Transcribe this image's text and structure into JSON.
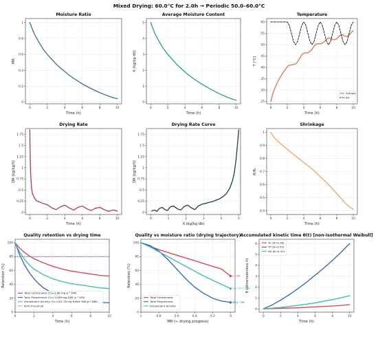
{
  "suptitle": "Mixed Drying: 60.0°C for 2.0h → Periodic 50.0–60.0°C",
  "colors": {
    "mr": "#3a6d9a",
    "x": "#2a9d8f",
    "sample": "#e76f51",
    "air": "#111111",
    "rate": "#b5357a",
    "curve": "#1d3e4d",
    "shrink": "#f4a261",
    "car": "#e63946",
    "tp": "#2a63b8",
    "aa": "#2ec4a6",
    "threshold": "#8a6fc9"
  },
  "chart_data": [
    {
      "id": "moisture-ratio",
      "type": "line",
      "title": "Moisture Ratio",
      "xlabel": "Time (h)",
      "ylabel": "MR",
      "xlim": [
        -0.5,
        10.5
      ],
      "ylim": [
        -0.02,
        1.05
      ],
      "xticks": [
        0,
        2,
        4,
        6,
        8,
        10
      ],
      "yticks": [
        0.0,
        0.2,
        0.4,
        0.6,
        0.8,
        1.0
      ],
      "grid": true,
      "series": [
        {
          "color": "mr",
          "x": [
            0,
            0.5,
            1,
            1.5,
            2,
            2.5,
            3,
            3.5,
            4,
            4.5,
            5,
            5.5,
            6,
            6.5,
            7,
            7.5,
            8,
            8.5,
            9,
            9.5,
            10
          ],
          "y": [
            1.0,
            0.86,
            0.76,
            0.67,
            0.6,
            0.54,
            0.48,
            0.43,
            0.385,
            0.34,
            0.3,
            0.265,
            0.23,
            0.2,
            0.172,
            0.145,
            0.12,
            0.098,
            0.076,
            0.058,
            0.045
          ]
        }
      ]
    },
    {
      "id": "average-moisture",
      "type": "line",
      "title": "Average Moisture Content",
      "xlabel": "Time (h)",
      "ylabel": "X (kg/kg db)",
      "xlim": [
        -0.5,
        10.5
      ],
      "ylim": [
        -0.1,
        5.25
      ],
      "xticks": [
        0,
        2,
        4,
        6,
        8,
        10
      ],
      "yticks": [
        0,
        1,
        2,
        3,
        4,
        5
      ],
      "grid": true,
      "series": [
        {
          "color": "x",
          "x": [
            0,
            0.5,
            1,
            1.5,
            2,
            2.5,
            3,
            3.5,
            4,
            4.5,
            5,
            5.5,
            6,
            6.5,
            7,
            7.5,
            8,
            8.5,
            9,
            9.5,
            10
          ],
          "y": [
            5.0,
            4.3,
            3.8,
            3.35,
            3.0,
            2.7,
            2.4,
            2.15,
            1.9,
            1.68,
            1.48,
            1.3,
            1.13,
            0.97,
            0.82,
            0.68,
            0.54,
            0.42,
            0.3,
            0.2,
            0.12
          ]
        }
      ]
    },
    {
      "id": "temperature",
      "type": "line",
      "title": "Temperature",
      "xlabel": "Time (h)",
      "ylabel": "T (°C)",
      "xlim": [
        -0.5,
        10.5
      ],
      "ylim": [
        24,
        61.5
      ],
      "xticks": [
        0,
        2,
        4,
        6,
        8,
        10
      ],
      "yticks": [
        25,
        30,
        35,
        40,
        45,
        50,
        55,
        60
      ],
      "grid": true,
      "legend": "bottom-right",
      "series": [
        {
          "name": "Sample",
          "color": "sample",
          "x": [
            0,
            0.25,
            0.5,
            0.75,
            1,
            1.25,
            1.5,
            1.75,
            2,
            2.25,
            2.5,
            2.75,
            3,
            3.25,
            3.5,
            3.75,
            4,
            4.25,
            4.5,
            4.75,
            5,
            5.25,
            5.5,
            5.75,
            6,
            6.25,
            6.5,
            6.75,
            7,
            7.25,
            7.5,
            7.75,
            8,
            8.25,
            8.5,
            8.75,
            9,
            9.25,
            9.5,
            9.75,
            10
          ],
          "y": [
            25,
            28.5,
            31,
            33,
            34.8,
            36.3,
            37.8,
            39.1,
            40.3,
            41,
            41.1,
            41.3,
            41.5,
            42.5,
            44,
            45.5,
            46.3,
            46.4,
            46.5,
            47,
            48,
            49.3,
            50.3,
            50.4,
            50.4,
            50.7,
            51.4,
            52.3,
            53,
            52.8,
            52.3,
            52.2,
            52.6,
            53.6,
            54.4,
            54.3,
            53.7,
            53.6,
            54.3,
            55.4,
            56.2
          ]
        },
        {
          "name": "Air",
          "color": "air",
          "dashed": true,
          "x": [
            0,
            0.5,
            1,
            1.5,
            2,
            2.25,
            2.5,
            2.75,
            3,
            3.25,
            3.5,
            3.75,
            4,
            4.25,
            4.5,
            4.75,
            5,
            5.25,
            5.5,
            5.75,
            6,
            6.25,
            6.5,
            6.75,
            7,
            7.25,
            7.5,
            7.75,
            8,
            8.25,
            8.5,
            8.75,
            9,
            9.25,
            9.5,
            9.75,
            10
          ],
          "y": [
            60,
            60,
            60,
            60,
            60,
            58.5,
            55,
            51.5,
            50,
            51.5,
            55,
            58.5,
            60,
            58.5,
            55,
            51.5,
            50,
            51.5,
            55,
            58.5,
            60,
            58.5,
            55,
            51.5,
            50,
            51.5,
            55,
            58.5,
            60,
            58.5,
            55,
            51.5,
            50,
            51.5,
            55,
            58.5,
            60
          ]
        }
      ]
    },
    {
      "id": "drying-rate",
      "type": "line",
      "title": "Drying Rate",
      "xlabel": "Time (h)",
      "ylabel": "DR (kg/kg/h)",
      "xlim": [
        -0.5,
        10.5
      ],
      "ylim": [
        -0.05,
        1.88
      ],
      "xticks": [
        0,
        2,
        4,
        6,
        8,
        10
      ],
      "yticks": [
        0.0,
        0.25,
        0.5,
        0.75,
        1.0,
        1.25,
        1.5,
        1.75
      ],
      "grid": true,
      "series": [
        {
          "color": "rate",
          "x": [
            0,
            0.05,
            0.1,
            0.2,
            0.3,
            0.5,
            0.75,
            1,
            1.5,
            2,
            2.5,
            3,
            3.5,
            4,
            4.5,
            5,
            5.5,
            6,
            6.5,
            7,
            7.5,
            8,
            8.5,
            9,
            9.5,
            10
          ],
          "y": [
            1.85,
            1.2,
            0.85,
            0.55,
            0.42,
            0.33,
            0.26,
            0.24,
            0.2,
            0.17,
            0.1,
            0.06,
            0.12,
            0.16,
            0.1,
            0.05,
            0.11,
            0.14,
            0.08,
            0.04,
            0.09,
            0.11,
            0.06,
            0.02,
            0.05,
            0.03
          ]
        }
      ]
    },
    {
      "id": "drying-rate-curve",
      "type": "line",
      "title": "Drying Rate Curve",
      "xlabel": "X (kg/kg db)",
      "ylabel": "DR (kg/kg/h)",
      "xlim": [
        -0.25,
        5.1
      ],
      "ylim": [
        -0.05,
        1.88
      ],
      "xticks": [
        0,
        1,
        2,
        3,
        4,
        5
      ],
      "yticks": [
        0.0,
        0.25,
        0.5,
        0.75,
        1.0,
        1.25,
        1.5,
        1.75
      ],
      "grid": true,
      "series": [
        {
          "color": "curve",
          "x": [
            0.05,
            0.2,
            0.35,
            0.5,
            0.65,
            0.8,
            0.95,
            1.1,
            1.3,
            1.5,
            1.7,
            1.9,
            2.1,
            2.3,
            2.5,
            2.7,
            2.9,
            3.1,
            3.3,
            3.5,
            3.7,
            3.9,
            4.1,
            4.3,
            4.5,
            4.65,
            4.75,
            4.85,
            4.92,
            5.0
          ],
          "y": [
            0.03,
            0.05,
            0.02,
            0.09,
            0.11,
            0.06,
            0.04,
            0.12,
            0.14,
            0.08,
            0.05,
            0.13,
            0.16,
            0.1,
            0.06,
            0.14,
            0.18,
            0.2,
            0.22,
            0.24,
            0.27,
            0.3,
            0.35,
            0.42,
            0.55,
            0.72,
            0.9,
            1.2,
            1.5,
            1.85
          ]
        }
      ]
    },
    {
      "id": "shrinkage",
      "type": "line",
      "title": "Shrinkage",
      "xlabel": "Time (h)",
      "ylabel": "R/R₀",
      "xlim": [
        -0.5,
        10.5
      ],
      "ylim": [
        0.37,
        1.03
      ],
      "xticks": [
        0,
        2,
        4,
        6,
        8,
        10
      ],
      "yticks": [
        0.4,
        0.5,
        0.6,
        0.7,
        0.8,
        0.9,
        1.0
      ],
      "grid": true,
      "series": [
        {
          "color": "shrink",
          "x": [
            0,
            0.5,
            1,
            1.5,
            2,
            2.5,
            3,
            3.5,
            4,
            4.5,
            5,
            5.5,
            6,
            6.5,
            7,
            7.5,
            8,
            8.5,
            9,
            9.5,
            10
          ],
          "y": [
            1.0,
            0.955,
            0.925,
            0.897,
            0.87,
            0.845,
            0.82,
            0.795,
            0.77,
            0.745,
            0.72,
            0.69,
            0.66,
            0.63,
            0.6,
            0.565,
            0.53,
            0.495,
            0.46,
            0.43,
            0.41
          ]
        }
      ]
    },
    {
      "id": "quality-retention",
      "type": "line",
      "title": "Quality retention vs drying time",
      "xlabel": "Time (h)",
      "ylabel": "Retention (%)",
      "xlim": [
        0,
        10
      ],
      "ylim": [
        0,
        105
      ],
      "xticks": [
        0,
        2,
        4,
        6,
        8,
        10
      ],
      "yticks": [
        0,
        20,
        40,
        60,
        80,
        100
      ],
      "grid": true,
      "legend": "bottom-left",
      "series": [
        {
          "name": "Total Carotenoids (C₀=1.66 mg g⁻¹ DM)",
          "color": "car",
          "x": [
            0,
            0.5,
            1,
            1.5,
            2,
            3,
            4,
            5,
            6,
            7,
            8,
            9,
            10
          ],
          "y": [
            100,
            92,
            86,
            81,
            77,
            71,
            66,
            62,
            59,
            57,
            55,
            53,
            52
          ]
        },
        {
          "name": "Total Polyphenols (C₀=14.64 mg GAE g⁻¹ DM)",
          "color": "tp",
          "x": [
            0,
            0.5,
            1,
            1.5,
            2,
            2.5,
            3,
            3.5,
            4,
            4.5,
            5,
            6,
            7,
            8,
            9,
            10
          ],
          "y": [
            100,
            82,
            68,
            57,
            48,
            41,
            35,
            31,
            27,
            24,
            21,
            18,
            15.5,
            14.5,
            14,
            13.5
          ]
        },
        {
          "name": "Antioxidant Activity (C₀=201.18 mg trolox 100 g⁻¹ DM)",
          "color": "aa",
          "x": [
            0,
            0.5,
            1,
            1.5,
            2,
            3,
            4,
            5,
            6,
            7,
            8,
            9,
            10
          ],
          "y": [
            100,
            86,
            76,
            68,
            62,
            54,
            48,
            44,
            41,
            39,
            37,
            35,
            34
          ]
        },
        {
          "name": "80% threshold",
          "color": "threshold",
          "dashed": true,
          "x": [
            0,
            10
          ],
          "y": [
            80,
            80
          ]
        }
      ]
    },
    {
      "id": "quality-vs-mr",
      "type": "line",
      "title": "Quality vs moisture ratio (drying trajectory)",
      "xlabel": "MR  (← drying progress)",
      "ylabel": "Retention (%)",
      "xlim": [
        1.0,
        -0.05
      ],
      "ylim": [
        0,
        105
      ],
      "xticks": [
        1.0,
        0.8,
        0.6,
        0.4,
        0.2,
        0.0
      ],
      "yticks": [
        0,
        20,
        40,
        60,
        80,
        100
      ],
      "grid": true,
      "legend": "bottom-left",
      "annotations": [
        {
          "text": "g⁻¹ DM",
          "color": "car",
          "x": 0.0,
          "y": 52
        },
        {
          "text": "olox 100 g⁻¹ DM",
          "color": "aa",
          "x": 0.0,
          "y": 34
        },
        {
          "text": "DM g⁻¹ DM",
          "color": "tp",
          "x": 0.0,
          "y": 14
        }
      ],
      "series": [
        {
          "name": "Total Carotenoids",
          "color": "car",
          "x": [
            1.0,
            0.9,
            0.8,
            0.7,
            0.6,
            0.5,
            0.4,
            0.3,
            0.2,
            0.1,
            0.05,
            0.0
          ],
          "y": [
            100,
            95,
            90,
            86,
            82,
            78,
            74,
            70,
            66,
            62,
            57,
            52
          ]
        },
        {
          "name": "Total Polyphenols",
          "color": "tp",
          "x": [
            1.0,
            0.9,
            0.8,
            0.7,
            0.6,
            0.5,
            0.4,
            0.3,
            0.2,
            0.1,
            0.05,
            0.0
          ],
          "y": [
            100,
            96,
            88,
            76,
            62,
            48,
            36,
            27,
            20,
            16,
            15,
            14
          ]
        },
        {
          "name": "Antioxidant Activity",
          "color": "aa",
          "x": [
            1.0,
            0.9,
            0.8,
            0.7,
            0.6,
            0.5,
            0.4,
            0.3,
            0.2,
            0.1,
            0.05,
            0.0
          ],
          "y": [
            100,
            94,
            87,
            80,
            73,
            66,
            59,
            52,
            46,
            40,
            37,
            34
          ]
        }
      ]
    },
    {
      "id": "kinetic-time",
      "type": "line",
      "title": "Accumulated kinetic time θ(t)  [non-isothermal Weibull]",
      "xlabel": "Time (h)",
      "ylabel": "θ (dimensionless h)",
      "xlim": [
        -0.5,
        10.5
      ],
      "ylim": [
        -0.3,
        6.4
      ],
      "xticks": [
        0,
        2,
        4,
        6,
        8,
        10
      ],
      "yticks": [
        0,
        1,
        2,
        3,
        4,
        5,
        6
      ],
      "grid": true,
      "legend": "top-left",
      "series": [
        {
          "name": "TC  (β=0.36)",
          "color": "car",
          "x": [
            0,
            2,
            4,
            6,
            8,
            10
          ],
          "y": [
            0,
            0.05,
            0.1,
            0.18,
            0.26,
            0.38
          ]
        },
        {
          "name": "TP  (β=0.95)",
          "color": "tp",
          "x": [
            0,
            1,
            2,
            3,
            4,
            5,
            6,
            7,
            8,
            9,
            10
          ],
          "y": [
            0,
            0.35,
            0.8,
            1.3,
            1.85,
            2.45,
            3.1,
            3.75,
            4.45,
            5.2,
            6.0
          ]
        },
        {
          "name": "AA  (β=0.41)",
          "color": "aa",
          "x": [
            0,
            2,
            4,
            6,
            8,
            10
          ],
          "y": [
            0,
            0.13,
            0.32,
            0.55,
            0.85,
            1.2
          ]
        }
      ]
    }
  ]
}
